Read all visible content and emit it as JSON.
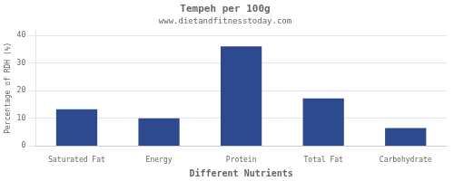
{
  "chart_data": {
    "type": "bar",
    "title": "Tempeh per 100g",
    "subtitle": "www.dietandfitnesstoday.com",
    "xlabel": "Different Nutrients",
    "ylabel": "Percentage of RDH (%)",
    "categories": [
      "Saturated Fat",
      "Energy",
      "Protein",
      "Total Fat",
      "Carbohydrate"
    ],
    "values": [
      13.3,
      10.0,
      36.0,
      17.2,
      6.5
    ],
    "color": "#2e4a8e",
    "ylim": [
      0,
      42
    ],
    "yticks": [
      0,
      10,
      20,
      30,
      40
    ],
    "grid": true
  }
}
